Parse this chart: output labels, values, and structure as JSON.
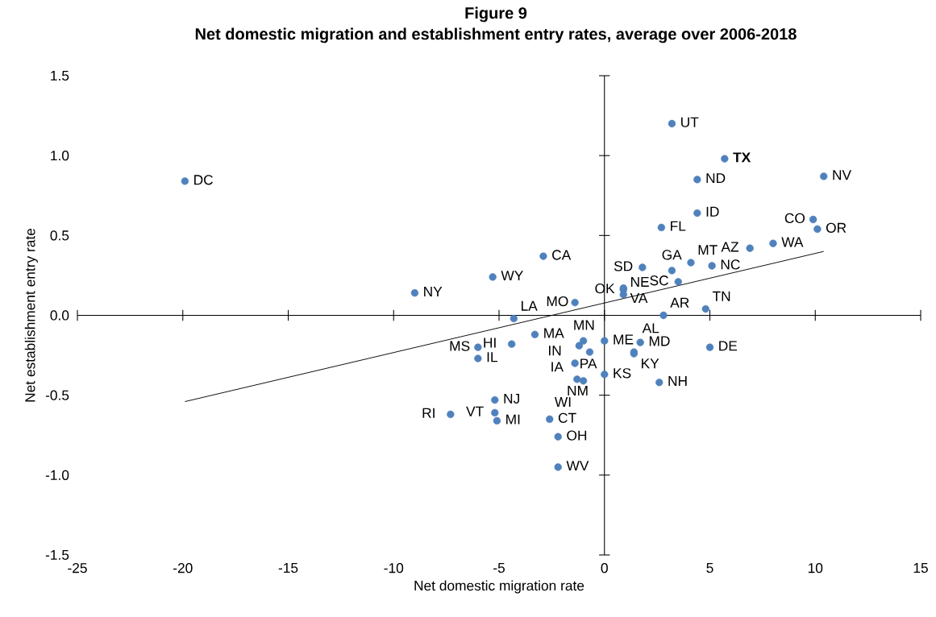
{
  "chart_data": {
    "type": "scatter",
    "title": "Figure 9",
    "subtitle": "Net domestic migration and establishment entry rates, average over 2006-2018",
    "xlabel": "Net domestic migration rate",
    "ylabel": "Net establishment entry rate",
    "xlim": [
      -25,
      15
    ],
    "xticks": [
      -25,
      -20,
      -15,
      -10,
      -5,
      0,
      5,
      10,
      15
    ],
    "ylim": [
      -1.5,
      1.5
    ],
    "yticks": [
      {
        "value": -1.5,
        "label": "-1.5"
      },
      {
        "value": -1,
        "label": "-1.0"
      },
      {
        "value": -0.5,
        "label": "-0.5"
      },
      {
        "value": 0,
        "label": "0.0"
      },
      {
        "value": 0.5,
        "label": "0.5"
      },
      {
        "value": 1,
        "label": "1.0"
      },
      {
        "value": 1.5,
        "label": "1.5"
      }
    ],
    "series": [
      {
        "color": "#4f81bd",
        "x": [
          -19.9,
          -9.0,
          -5.3,
          -2.9,
          -1.4,
          -4.3,
          -4.4,
          -3.3,
          -6.0,
          -6.0,
          -1.0,
          -1.2,
          0.0,
          -0.7,
          -1.4,
          -1.3,
          -1.0,
          0.0,
          2.8,
          4.8,
          5.0,
          2.6,
          1.7,
          1.4,
          1.4,
          1.8,
          3.2,
          4.1,
          5.1,
          3.5,
          0.9,
          0.9,
          0.9,
          2.7,
          4.4,
          4.4,
          5.7,
          3.2,
          10.4,
          9.9,
          10.1,
          8.0,
          6.9,
          -5.2,
          -5.2,
          -5.1,
          -7.3,
          -2.6,
          -2.2,
          -2.2
        ],
        "values": [
          0.84,
          0.14,
          0.24,
          0.37,
          0.08,
          -0.02,
          -0.18,
          -0.12,
          -0.2,
          -0.27,
          -0.16,
          -0.19,
          -0.16,
          -0.23,
          -0.3,
          -0.4,
          -0.41,
          -0.37,
          0.0,
          0.04,
          -0.2,
          -0.42,
          -0.17,
          -0.24,
          -0.23,
          0.3,
          0.28,
          0.33,
          0.31,
          0.21,
          0.17,
          0.16,
          0.13,
          0.55,
          0.64,
          0.85,
          0.98,
          1.2,
          0.87,
          0.6,
          0.54,
          0.45,
          0.42,
          -0.53,
          -0.61,
          -0.66,
          -0.62,
          -0.65,
          -0.76,
          -0.95
        ]
      },
      {
        "type": "line",
        "color": "#000000",
        "x": [
          -19.9,
          10.4
        ],
        "values": [
          -0.54,
          0.4
        ]
      }
    ],
    "annotations": [
      {
        "text": "DC",
        "x": -19.9,
        "y": 0.84
      },
      {
        "text": "NY",
        "x": -9.0,
        "y": 0.14
      },
      {
        "text": "WY",
        "x": -5.3,
        "y": 0.24
      },
      {
        "text": "CA",
        "x": -2.9,
        "y": 0.37
      },
      {
        "text": "MO",
        "x": -1.4,
        "y": 0.08
      },
      {
        "text": "LA",
        "x": -4.3,
        "y": -0.02
      },
      {
        "text": "HI",
        "x": -4.4,
        "y": -0.18
      },
      {
        "text": "MA",
        "x": -3.3,
        "y": -0.12
      },
      {
        "text": "MS",
        "x": -6.0,
        "y": -0.2
      },
      {
        "text": "IL",
        "x": -6.0,
        "y": -0.27
      },
      {
        "text": "MN",
        "x": -1.0,
        "y": -0.16
      },
      {
        "text": "IA",
        "x": -1.2,
        "y": -0.19
      },
      {
        "text": "ME",
        "x": 0.0,
        "y": -0.16
      },
      {
        "text": "PA",
        "x": -0.7,
        "y": -0.23
      },
      {
        "text": "IN",
        "x": -1.4,
        "y": -0.3
      },
      {
        "text": "NM",
        "x": -1.3,
        "y": -0.4
      },
      {
        "text": "WI",
        "x": -1.0,
        "y": -0.41
      },
      {
        "text": "KS",
        "x": 0.0,
        "y": -0.37
      },
      {
        "text": "AR",
        "x": 2.8,
        "y": 0.0
      },
      {
        "text": "TN",
        "x": 4.8,
        "y": 0.04
      },
      {
        "text": "DE",
        "x": 5.0,
        "y": -0.2
      },
      {
        "text": "NH",
        "x": 2.6,
        "y": -0.42
      },
      {
        "text": "MD",
        "x": 1.7,
        "y": -0.17
      },
      {
        "text": "KY",
        "x": 1.4,
        "y": -0.24
      },
      {
        "text": "AL",
        "x": 1.4,
        "y": -0.23
      },
      {
        "text": "SD",
        "x": 1.8,
        "y": 0.3
      },
      {
        "text": "GA",
        "x": 3.2,
        "y": 0.28
      },
      {
        "text": "MT",
        "x": 4.1,
        "y": 0.33
      },
      {
        "text": "NC",
        "x": 5.1,
        "y": 0.31
      },
      {
        "text": "SC",
        "x": 3.5,
        "y": 0.21
      },
      {
        "text": "VA",
        "x": 0.9,
        "y": 0.17
      },
      {
        "text": "OK",
        "x": 0.9,
        "y": 0.16
      },
      {
        "text": "NE",
        "x": 0.9,
        "y": 0.13
      },
      {
        "text": "FL",
        "x": 2.7,
        "y": 0.55
      },
      {
        "text": "ID",
        "x": 4.4,
        "y": 0.64
      },
      {
        "text": "ND",
        "x": 4.4,
        "y": 0.85
      },
      {
        "text": "**TX**",
        "x": 5.7,
        "y": 0.98
      },
      {
        "text": "UT",
        "x": 3.2,
        "y": 1.2
      },
      {
        "text": "NV",
        "x": 10.4,
        "y": 0.87
      },
      {
        "text": "CO",
        "x": 9.9,
        "y": 0.6
      },
      {
        "text": "OR",
        "x": 10.1,
        "y": 0.54
      },
      {
        "text": "WA",
        "x": 8.0,
        "y": 0.45
      },
      {
        "text": "AZ",
        "x": 6.9,
        "y": 0.42
      },
      {
        "text": "NJ",
        "x": -5.2,
        "y": -0.53
      },
      {
        "text": "VT",
        "x": -5.2,
        "y": -0.61
      },
      {
        "text": "MI",
        "x": -5.1,
        "y": -0.66
      },
      {
        "text": "RI",
        "x": -7.3,
        "y": -0.62
      },
      {
        "text": "CT",
        "x": -2.6,
        "y": -0.65
      },
      {
        "text": "OH",
        "x": -2.2,
        "y": -0.76
      },
      {
        "text": "WV",
        "x": -2.2,
        "y": -0.95
      }
    ]
  }
}
